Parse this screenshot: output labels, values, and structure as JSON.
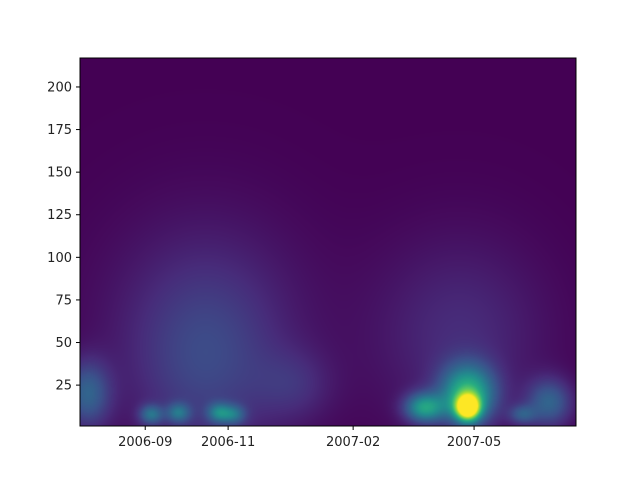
{
  "chart_data": {
    "type": "heatmap",
    "title": "",
    "xlabel": "",
    "ylabel": "",
    "colormap": "viridis",
    "x_range": [
      "2006-07-15",
      "2007-07-15"
    ],
    "ylim": [
      1,
      217
    ],
    "x_ticks": [
      {
        "date": "2006-09-01",
        "label": "2006-09"
      },
      {
        "date": "2006-11-01",
        "label": "2006-11"
      },
      {
        "date": "2007-02-01",
        "label": "2007-02"
      },
      {
        "date": "2007-05-01",
        "label": "2007-05"
      }
    ],
    "y_ticks": [
      25,
      50,
      75,
      100,
      125,
      150,
      175,
      200
    ],
    "y_tick_labels": [
      "25",
      "50",
      "75",
      "100",
      "125",
      "150",
      "175",
      "200"
    ],
    "grid": false,
    "legend": "none",
    "features": [
      {
        "date": "2006-10-15",
        "scale": 35,
        "intensity": 0.16,
        "date_spread_days": 40,
        "scale_spread": 40
      },
      {
        "date": "2006-10-15",
        "scale": 70,
        "intensity": 0.09,
        "date_spread_days": 55,
        "scale_spread": 45
      },
      {
        "date": "2007-04-20",
        "scale": 55,
        "intensity": 0.13,
        "date_spread_days": 45,
        "scale_spread": 40
      },
      {
        "date": "2007-04-26",
        "scale": 12,
        "intensity": 1.0,
        "date_spread_days": 6,
        "scale_spread": 5
      },
      {
        "date": "2007-04-26",
        "scale": 20,
        "intensity": 0.6,
        "date_spread_days": 14,
        "scale_spread": 12
      },
      {
        "date": "2007-03-25",
        "scale": 12,
        "intensity": 0.5,
        "date_spread_days": 10,
        "scale_spread": 6
      },
      {
        "date": "2006-07-20",
        "scale": 20,
        "intensity": 0.3,
        "date_spread_days": 12,
        "scale_spread": 14
      },
      {
        "date": "2006-09-05",
        "scale": 8,
        "intensity": 0.3,
        "date_spread_days": 6,
        "scale_spread": 4
      },
      {
        "date": "2006-09-25",
        "scale": 9,
        "intensity": 0.28,
        "date_spread_days": 6,
        "scale_spread": 4
      },
      {
        "date": "2006-10-25",
        "scale": 9,
        "intensity": 0.32,
        "date_spread_days": 6,
        "scale_spread": 4
      },
      {
        "date": "2006-11-05",
        "scale": 8,
        "intensity": 0.25,
        "date_spread_days": 6,
        "scale_spread": 4
      },
      {
        "date": "2007-06-25",
        "scale": 15,
        "intensity": 0.3,
        "date_spread_days": 12,
        "scale_spread": 10
      },
      {
        "date": "2007-06-05",
        "scale": 8,
        "intensity": 0.22,
        "date_spread_days": 7,
        "scale_spread": 4
      },
      {
        "date": "2006-12-20",
        "scale": 25,
        "intensity": 0.1,
        "date_spread_days": 20,
        "scale_spread": 15
      }
    ],
    "colors": {
      "background_min": "#440154",
      "axis": "#000000",
      "text": "#222222"
    }
  }
}
